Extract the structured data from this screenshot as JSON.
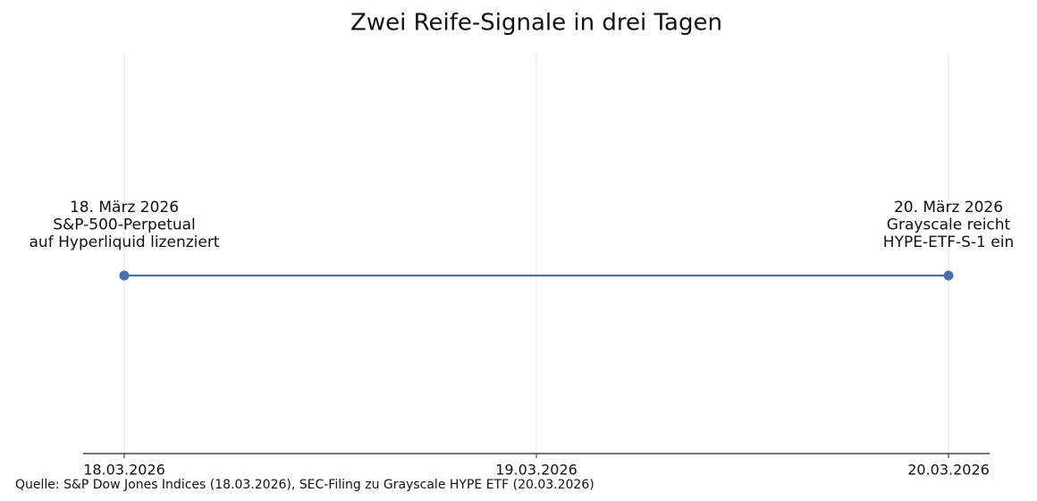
{
  "chart_data": {
    "type": "timeline",
    "title": "Zwei Reife-Signale in drei Tagen",
    "x": [
      "18.03.2026",
      "20.03.2026"
    ],
    "annotations": [
      [
        "18. März 2026",
        "S&P-500-Perpetual",
        "auf Hyperliquid lizenziert"
      ],
      [
        "20. März 2026",
        "Grayscale reicht",
        "HYPE-ETF-S-1 ein"
      ]
    ],
    "xticks": [
      "18.03.2026",
      "19.03.2026",
      "20.03.2026"
    ],
    "grid": true,
    "color": "#4a70a8",
    "source": "Quelle: S&P Dow Jones Indices (18.03.2026), SEC-Filing zu Grayscale HYPE ETF (20.03.2026)"
  }
}
